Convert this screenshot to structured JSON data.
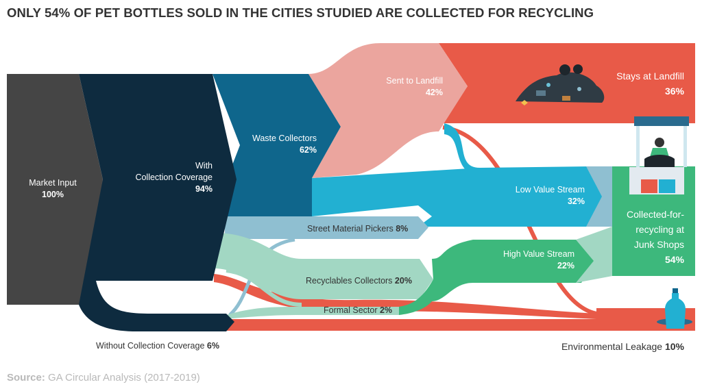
{
  "title": "ONLY 54% OF PET BOTTLES SOLD IN THE CITIES STUDIED ARE COLLECTED FOR RECYCLING",
  "colors": {
    "market_input": "#454545",
    "collection_coverage": "#0e2b3f",
    "waste_collectors": "#0f668c",
    "landfill_light": "#eba59e",
    "landfill_red": "#e85a48",
    "low_value_blue": "#22b0d2",
    "pickers_blue": "#8fbfd1",
    "recyclables_green": "#a2d7c3",
    "high_value_green": "#3db87c",
    "junk_shop_green": "#3db87c"
  },
  "nodes": {
    "market_input": {
      "label": "Market Input",
      "value": "100%"
    },
    "collection_coverage": {
      "label_line1": "With",
      "label_line2": "Collection Coverage",
      "value": "94%"
    },
    "without_coverage": {
      "label": "Without Collection Coverage",
      "value": "6%"
    },
    "waste_collectors": {
      "label": "Waste Collectors",
      "value": "62%"
    },
    "sent_to_landfill": {
      "label": "Sent to Landfill",
      "value": "42%"
    },
    "stays_at_landfill": {
      "label": "Stays at Landfill",
      "value": "36%"
    },
    "street_pickers": {
      "label": "Street Material Pickers",
      "value": "8%"
    },
    "recyclables_collectors": {
      "label": "Recyclables Collectors",
      "value": "20%"
    },
    "formal_sector": {
      "label": "Formal Sector",
      "value": "2%"
    },
    "low_value_stream": {
      "label": "Low Value Stream",
      "value": "32%"
    },
    "high_value_stream": {
      "label": "High Value Stream",
      "value": "22%"
    },
    "junk_shops": {
      "label_line1": "Collected-for-",
      "label_line2": "recycling at",
      "label_line3": "Junk Shops",
      "value": "54%"
    },
    "environmental_leakage": {
      "label": "Environmental Leakage",
      "value": "10%"
    }
  },
  "icons": [
    "landfill-trash-pile-icon",
    "junk-shop-stall-icon",
    "plastic-bottle-water-icon"
  ],
  "source": {
    "prefix": "Source:",
    "text": "GA Circular Analysis (2017-2019)"
  }
}
